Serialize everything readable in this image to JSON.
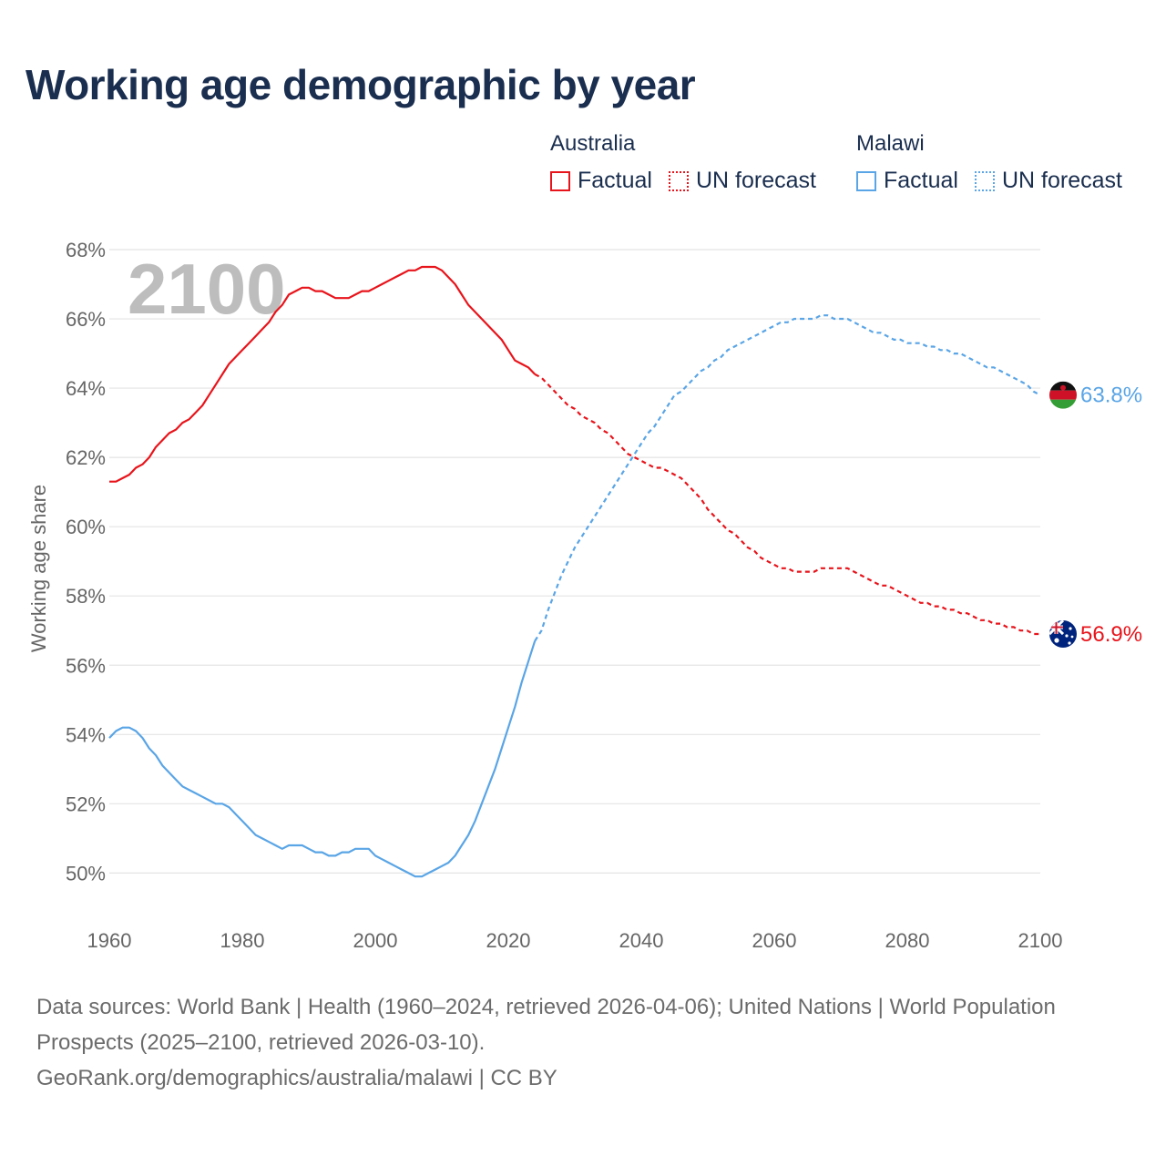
{
  "title": "Working age demographic by year",
  "legend": {
    "groups": [
      {
        "country": "Australia",
        "color": "#e8141b",
        "factual": "Factual",
        "forecast": "UN forecast"
      },
      {
        "country": "Malawi",
        "color": "#5aa5e6",
        "factual": "Factual",
        "forecast": "UN forecast"
      }
    ]
  },
  "footer": {
    "line1": "Data sources: World Bank | Health (1960–2024, retrieved 2026-04-06); United Nations | World Population Prospects (2025–2100, retrieved 2026-03-10).",
    "line2": "GeoRank.org/demographics/australia/malawi | CC BY"
  },
  "chart_data": {
    "type": "line",
    "title": "Working age demographic by year",
    "ylabel": "Working age share",
    "xlabel": "",
    "year_overlay": "2100",
    "xlim": [
      1960,
      2100
    ],
    "ylim": [
      48.8,
      68
    ],
    "x_ticks": [
      1960,
      1980,
      2000,
      2020,
      2040,
      2060,
      2080,
      2100
    ],
    "x_tick_labels": [
      "1960",
      "1980",
      "2000",
      "2020",
      "2040",
      "2060",
      "2080",
      "2100"
    ],
    "y_ticks": [
      50,
      52,
      54,
      56,
      58,
      60,
      62,
      64,
      66,
      68
    ],
    "y_tick_labels": [
      "50%",
      "52%",
      "54%",
      "56%",
      "58%",
      "60%",
      "62%",
      "64%",
      "66%",
      "68%"
    ],
    "grid": true,
    "series": [
      {
        "name": "Australia",
        "color": "#e8141b",
        "factual_end": 2024,
        "end_label": "56.9%",
        "flag": "australia",
        "points": [
          [
            1960,
            61.3
          ],
          [
            1961,
            61.3
          ],
          [
            1962,
            61.4
          ],
          [
            1963,
            61.5
          ],
          [
            1964,
            61.7
          ],
          [
            1965,
            61.8
          ],
          [
            1966,
            62.0
          ],
          [
            1967,
            62.3
          ],
          [
            1968,
            62.5
          ],
          [
            1969,
            62.7
          ],
          [
            1970,
            62.8
          ],
          [
            1971,
            63.0
          ],
          [
            1972,
            63.1
          ],
          [
            1973,
            63.3
          ],
          [
            1974,
            63.5
          ],
          [
            1975,
            63.8
          ],
          [
            1976,
            64.1
          ],
          [
            1977,
            64.4
          ],
          [
            1978,
            64.7
          ],
          [
            1979,
            64.9
          ],
          [
            1980,
            65.1
          ],
          [
            1981,
            65.3
          ],
          [
            1982,
            65.5
          ],
          [
            1983,
            65.7
          ],
          [
            1984,
            65.9
          ],
          [
            1985,
            66.2
          ],
          [
            1986,
            66.4
          ],
          [
            1987,
            66.7
          ],
          [
            1988,
            66.8
          ],
          [
            1989,
            66.9
          ],
          [
            1990,
            66.9
          ],
          [
            1991,
            66.8
          ],
          [
            1992,
            66.8
          ],
          [
            1993,
            66.7
          ],
          [
            1994,
            66.6
          ],
          [
            1995,
            66.6
          ],
          [
            1996,
            66.6
          ],
          [
            1997,
            66.7
          ],
          [
            1998,
            66.8
          ],
          [
            1999,
            66.8
          ],
          [
            2000,
            66.9
          ],
          [
            2001,
            67.0
          ],
          [
            2002,
            67.1
          ],
          [
            2003,
            67.2
          ],
          [
            2004,
            67.3
          ],
          [
            2005,
            67.4
          ],
          [
            2006,
            67.4
          ],
          [
            2007,
            67.5
          ],
          [
            2008,
            67.5
          ],
          [
            2009,
            67.5
          ],
          [
            2010,
            67.4
          ],
          [
            2011,
            67.2
          ],
          [
            2012,
            67.0
          ],
          [
            2013,
            66.7
          ],
          [
            2014,
            66.4
          ],
          [
            2015,
            66.2
          ],
          [
            2016,
            66.0
          ],
          [
            2017,
            65.8
          ],
          [
            2018,
            65.6
          ],
          [
            2019,
            65.4
          ],
          [
            2020,
            65.1
          ],
          [
            2021,
            64.8
          ],
          [
            2022,
            64.7
          ],
          [
            2023,
            64.6
          ],
          [
            2024,
            64.4
          ],
          [
            2025,
            64.3
          ],
          [
            2026,
            64.1
          ],
          [
            2027,
            63.9
          ],
          [
            2028,
            63.7
          ],
          [
            2029,
            63.5
          ],
          [
            2030,
            63.4
          ],
          [
            2031,
            63.2
          ],
          [
            2032,
            63.1
          ],
          [
            2033,
            63.0
          ],
          [
            2034,
            62.8
          ],
          [
            2035,
            62.7
          ],
          [
            2036,
            62.5
          ],
          [
            2037,
            62.3
          ],
          [
            2038,
            62.1
          ],
          [
            2039,
            62.0
          ],
          [
            2040,
            61.9
          ],
          [
            2041,
            61.8
          ],
          [
            2042,
            61.7
          ],
          [
            2043,
            61.7
          ],
          [
            2044,
            61.6
          ],
          [
            2045,
            61.5
          ],
          [
            2046,
            61.4
          ],
          [
            2047,
            61.2
          ],
          [
            2048,
            61.0
          ],
          [
            2049,
            60.8
          ],
          [
            2050,
            60.5
          ],
          [
            2051,
            60.3
          ],
          [
            2052,
            60.1
          ],
          [
            2053,
            59.9
          ],
          [
            2054,
            59.8
          ],
          [
            2055,
            59.6
          ],
          [
            2056,
            59.4
          ],
          [
            2057,
            59.3
          ],
          [
            2058,
            59.1
          ],
          [
            2059,
            59.0
          ],
          [
            2060,
            58.9
          ],
          [
            2061,
            58.8
          ],
          [
            2062,
            58.8
          ],
          [
            2063,
            58.7
          ],
          [
            2064,
            58.7
          ],
          [
            2065,
            58.7
          ],
          [
            2066,
            58.7
          ],
          [
            2067,
            58.8
          ],
          [
            2068,
            58.8
          ],
          [
            2069,
            58.8
          ],
          [
            2070,
            58.8
          ],
          [
            2071,
            58.8
          ],
          [
            2072,
            58.7
          ],
          [
            2073,
            58.6
          ],
          [
            2074,
            58.5
          ],
          [
            2075,
            58.4
          ],
          [
            2076,
            58.3
          ],
          [
            2077,
            58.3
          ],
          [
            2078,
            58.2
          ],
          [
            2079,
            58.1
          ],
          [
            2080,
            58.0
          ],
          [
            2081,
            57.9
          ],
          [
            2082,
            57.8
          ],
          [
            2083,
            57.8
          ],
          [
            2084,
            57.7
          ],
          [
            2085,
            57.7
          ],
          [
            2086,
            57.6
          ],
          [
            2087,
            57.6
          ],
          [
            2088,
            57.5
          ],
          [
            2089,
            57.5
          ],
          [
            2090,
            57.4
          ],
          [
            2091,
            57.3
          ],
          [
            2092,
            57.3
          ],
          [
            2093,
            57.2
          ],
          [
            2094,
            57.2
          ],
          [
            2095,
            57.1
          ],
          [
            2096,
            57.1
          ],
          [
            2097,
            57.0
          ],
          [
            2098,
            57.0
          ],
          [
            2099,
            56.9
          ],
          [
            2100,
            56.9
          ]
        ]
      },
      {
        "name": "Malawi",
        "color": "#5aa5e6",
        "factual_end": 2024,
        "end_label": "63.8%",
        "flag": "malawi",
        "points": [
          [
            1960,
            53.9
          ],
          [
            1961,
            54.1
          ],
          [
            1962,
            54.2
          ],
          [
            1963,
            54.2
          ],
          [
            1964,
            54.1
          ],
          [
            1965,
            53.9
          ],
          [
            1966,
            53.6
          ],
          [
            1967,
            53.4
          ],
          [
            1968,
            53.1
          ],
          [
            1969,
            52.9
          ],
          [
            1970,
            52.7
          ],
          [
            1971,
            52.5
          ],
          [
            1972,
            52.4
          ],
          [
            1973,
            52.3
          ],
          [
            1974,
            52.2
          ],
          [
            1975,
            52.1
          ],
          [
            1976,
            52.0
          ],
          [
            1977,
            52.0
          ],
          [
            1978,
            51.9
          ],
          [
            1979,
            51.7
          ],
          [
            1980,
            51.5
          ],
          [
            1981,
            51.3
          ],
          [
            1982,
            51.1
          ],
          [
            1983,
            51.0
          ],
          [
            1984,
            50.9
          ],
          [
            1985,
            50.8
          ],
          [
            1986,
            50.7
          ],
          [
            1987,
            50.8
          ],
          [
            1988,
            50.8
          ],
          [
            1989,
            50.8
          ],
          [
            1990,
            50.7
          ],
          [
            1991,
            50.6
          ],
          [
            1992,
            50.6
          ],
          [
            1993,
            50.5
          ],
          [
            1994,
            50.5
          ],
          [
            1995,
            50.6
          ],
          [
            1996,
            50.6
          ],
          [
            1997,
            50.7
          ],
          [
            1998,
            50.7
          ],
          [
            1999,
            50.7
          ],
          [
            2000,
            50.5
          ],
          [
            2001,
            50.4
          ],
          [
            2002,
            50.3
          ],
          [
            2003,
            50.2
          ],
          [
            2004,
            50.1
          ],
          [
            2005,
            50.0
          ],
          [
            2006,
            49.9
          ],
          [
            2007,
            49.9
          ],
          [
            2008,
            50.0
          ],
          [
            2009,
            50.1
          ],
          [
            2010,
            50.2
          ],
          [
            2011,
            50.3
          ],
          [
            2012,
            50.5
          ],
          [
            2013,
            50.8
          ],
          [
            2014,
            51.1
          ],
          [
            2015,
            51.5
          ],
          [
            2016,
            52.0
          ],
          [
            2017,
            52.5
          ],
          [
            2018,
            53.0
          ],
          [
            2019,
            53.6
          ],
          [
            2020,
            54.2
          ],
          [
            2021,
            54.8
          ],
          [
            2022,
            55.5
          ],
          [
            2023,
            56.1
          ],
          [
            2024,
            56.7
          ],
          [
            2025,
            57.0
          ],
          [
            2026,
            57.6
          ],
          [
            2027,
            58.1
          ],
          [
            2028,
            58.6
          ],
          [
            2029,
            59.0
          ],
          [
            2030,
            59.4
          ],
          [
            2031,
            59.7
          ],
          [
            2032,
            60.0
          ],
          [
            2033,
            60.3
          ],
          [
            2034,
            60.6
          ],
          [
            2035,
            60.9
          ],
          [
            2036,
            61.2
          ],
          [
            2037,
            61.5
          ],
          [
            2038,
            61.8
          ],
          [
            2039,
            62.1
          ],
          [
            2040,
            62.4
          ],
          [
            2041,
            62.7
          ],
          [
            2042,
            62.9
          ],
          [
            2043,
            63.2
          ],
          [
            2044,
            63.5
          ],
          [
            2045,
            63.8
          ],
          [
            2046,
            63.9
          ],
          [
            2047,
            64.1
          ],
          [
            2048,
            64.3
          ],
          [
            2049,
            64.5
          ],
          [
            2050,
            64.6
          ],
          [
            2051,
            64.8
          ],
          [
            2052,
            64.9
          ],
          [
            2053,
            65.1
          ],
          [
            2054,
            65.2
          ],
          [
            2055,
            65.3
          ],
          [
            2056,
            65.4
          ],
          [
            2057,
            65.5
          ],
          [
            2058,
            65.6
          ],
          [
            2059,
            65.7
          ],
          [
            2060,
            65.8
          ],
          [
            2061,
            65.9
          ],
          [
            2062,
            65.9
          ],
          [
            2063,
            66.0
          ],
          [
            2064,
            66.0
          ],
          [
            2065,
            66.0
          ],
          [
            2066,
            66.0
          ],
          [
            2067,
            66.1
          ],
          [
            2068,
            66.1
          ],
          [
            2069,
            66.0
          ],
          [
            2070,
            66.0
          ],
          [
            2071,
            66.0
          ],
          [
            2072,
            65.9
          ],
          [
            2073,
            65.8
          ],
          [
            2074,
            65.7
          ],
          [
            2075,
            65.6
          ],
          [
            2076,
            65.6
          ],
          [
            2077,
            65.5
          ],
          [
            2078,
            65.4
          ],
          [
            2079,
            65.4
          ],
          [
            2080,
            65.3
          ],
          [
            2081,
            65.3
          ],
          [
            2082,
            65.3
          ],
          [
            2083,
            65.2
          ],
          [
            2084,
            65.2
          ],
          [
            2085,
            65.1
          ],
          [
            2086,
            65.1
          ],
          [
            2087,
            65.0
          ],
          [
            2088,
            65.0
          ],
          [
            2089,
            64.9
          ],
          [
            2090,
            64.8
          ],
          [
            2091,
            64.7
          ],
          [
            2092,
            64.6
          ],
          [
            2093,
            64.6
          ],
          [
            2094,
            64.5
          ],
          [
            2095,
            64.4
          ],
          [
            2096,
            64.3
          ],
          [
            2097,
            64.2
          ],
          [
            2098,
            64.1
          ],
          [
            2099,
            63.9
          ],
          [
            2100,
            63.8
          ]
        ]
      }
    ]
  }
}
